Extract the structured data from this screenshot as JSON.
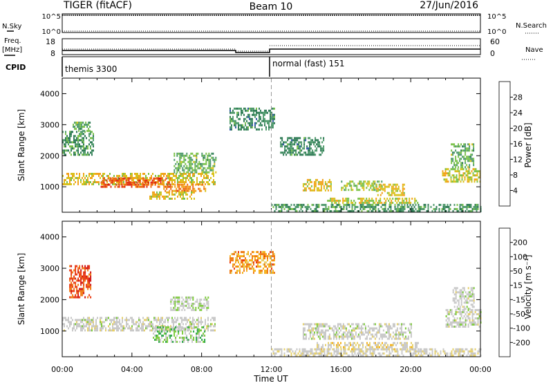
{
  "header": {
    "radar": "TIGER (fitACF)",
    "beam": "Beam 10",
    "date": "27/Jun/2016"
  },
  "top_panels": {
    "nsky_label": "N.Sky",
    "nsky_ticks": [
      "10^5",
      "10^0"
    ],
    "nsearch_label": "N.Search",
    "nsearch_ticks": [
      "10^5",
      "10^0"
    ],
    "freq_label_1": "Freq.",
    "freq_label_2": "[MHz]",
    "freq_ticks": [
      "18",
      "8"
    ],
    "nave_label": "Nave",
    "nave_ticks": [
      "60",
      "0"
    ],
    "cpid_label": "CPID",
    "cpid_mode_1": "themis 3300",
    "cpid_mode_2": "normal (fast) 151"
  },
  "colors": {
    "power_scale": [
      "#1a2bd6",
      "#2f55a6",
      "#2e7a55",
      "#4f9a6c",
      "#7bc24a",
      "#d9c21c",
      "#f3a21c",
      "#ef6a14",
      "#e23217",
      "#d01010"
    ],
    "velocity_scale": [
      "#d11414",
      "#ea3a12",
      "#f07a14",
      "#f5b11c",
      "#e6d06a",
      "#c8c8c8",
      "#c8c8c8",
      "#7ecb3c",
      "#2ea84a",
      "#2e7a8a",
      "#2a4aa8",
      "#1a2bd6"
    ]
  },
  "chart_data": [
    {
      "type": "heatmap",
      "title": "",
      "xlabel": "",
      "ylabel": "Slant Range [km]",
      "x_ticks": [
        "00:00",
        "04:00",
        "08:00",
        "12:00",
        "16:00",
        "20:00",
        "00:00"
      ],
      "y_ticks": [
        "1000",
        "2000",
        "3000",
        "4000"
      ],
      "xlim_hours": [
        0,
        24
      ],
      "ylim_km": [
        180,
        4500
      ],
      "colorbar_label": "Power [dB]",
      "colorbar_ticks": [
        "4",
        "8",
        "12",
        "16",
        "20",
        "24",
        "28"
      ],
      "colorbar_range": [
        0,
        30
      ],
      "regions": [
        {
          "t": [
            0.0,
            8.8
          ],
          "r": [
            1050,
            1450
          ],
          "v": 17
        },
        {
          "t": [
            2.2,
            6.2
          ],
          "r": [
            1000,
            1300
          ],
          "v": 24
        },
        {
          "t": [
            5.8,
            8.2
          ],
          "r": [
            850,
            1100
          ],
          "v": 21
        },
        {
          "t": [
            5.0,
            7.6
          ],
          "r": [
            600,
            850
          ],
          "v": 17
        },
        {
          "t": [
            6.4,
            8.8
          ],
          "r": [
            1450,
            2100
          ],
          "v": 12
        },
        {
          "t": [
            13.8,
            15.4
          ],
          "r": [
            900,
            1250
          ],
          "v": 17
        },
        {
          "t": [
            16.0,
            18.4
          ],
          "r": [
            900,
            1200
          ],
          "v": 14
        },
        {
          "t": [
            18.0,
            19.6
          ],
          "r": [
            700,
            1100
          ],
          "v": 17
        },
        {
          "t": [
            15.2,
            20.4
          ],
          "r": [
            450,
            650
          ],
          "v": 16
        },
        {
          "t": [
            12.0,
            24.0
          ],
          "r": [
            200,
            450
          ],
          "v": 10
        },
        {
          "t": [
            21.8,
            24.0
          ],
          "r": [
            1150,
            1600
          ],
          "v": 16
        },
        {
          "t": [
            22.3,
            23.6
          ],
          "r": [
            1600,
            2400
          ],
          "v": 12
        },
        {
          "t": [
            9.6,
            12.2
          ],
          "r": [
            2850,
            3550
          ],
          "v": 9
        },
        {
          "t": [
            12.5,
            15.0
          ],
          "r": [
            2000,
            2600
          ],
          "v": 9
        },
        {
          "t": [
            0.0,
            1.8
          ],
          "r": [
            2000,
            2800
          ],
          "v": 10
        },
        {
          "t": [
            0.6,
            1.6
          ],
          "r": [
            2800,
            3100
          ],
          "v": 12
        }
      ]
    },
    {
      "type": "heatmap",
      "title": "",
      "xlabel": "Time UT",
      "ylabel": "Slant Range [km]",
      "x_ticks": [
        "00:00",
        "04:00",
        "08:00",
        "12:00",
        "16:00",
        "20:00",
        "00:00"
      ],
      "y_ticks": [
        "1000",
        "2000",
        "3000",
        "4000"
      ],
      "xlim_hours": [
        0,
        24
      ],
      "ylim_km": [
        180,
        4500
      ],
      "colorbar_label": "Velocity [m s⁻¹]",
      "colorbar_ticks": [
        "-200",
        "-100",
        "-50",
        "-15",
        "15",
        "50",
        "100",
        "200"
      ],
      "colorbar_range": [
        -250,
        250
      ],
      "regions": [
        {
          "t": [
            0.0,
            8.8
          ],
          "r": [
            1050,
            1450
          ],
          "v": 0
        },
        {
          "t": [
            5.2,
            8.2
          ],
          "r": [
            650,
            1150
          ],
          "v": 55
        },
        {
          "t": [
            6.2,
            8.4
          ],
          "r": [
            1650,
            2100
          ],
          "v": 20
        },
        {
          "t": [
            13.8,
            20.0
          ],
          "r": [
            750,
            1250
          ],
          "v": 0
        },
        {
          "t": [
            14.6,
            20.4
          ],
          "r": [
            450,
            650
          ],
          "v": -40
        },
        {
          "t": [
            12.0,
            24.0
          ],
          "r": [
            200,
            450
          ],
          "v": -20
        },
        {
          "t": [
            22.0,
            24.0
          ],
          "r": [
            1150,
            1700
          ],
          "v": 0
        },
        {
          "t": [
            22.4,
            23.6
          ],
          "r": [
            1700,
            2400
          ],
          "v": 10
        },
        {
          "t": [
            9.6,
            12.2
          ],
          "r": [
            2850,
            3550
          ],
          "v": -120
        },
        {
          "t": [
            0.4,
            1.6
          ],
          "r": [
            2100,
            3100
          ],
          "v": -180
        }
      ]
    }
  ]
}
